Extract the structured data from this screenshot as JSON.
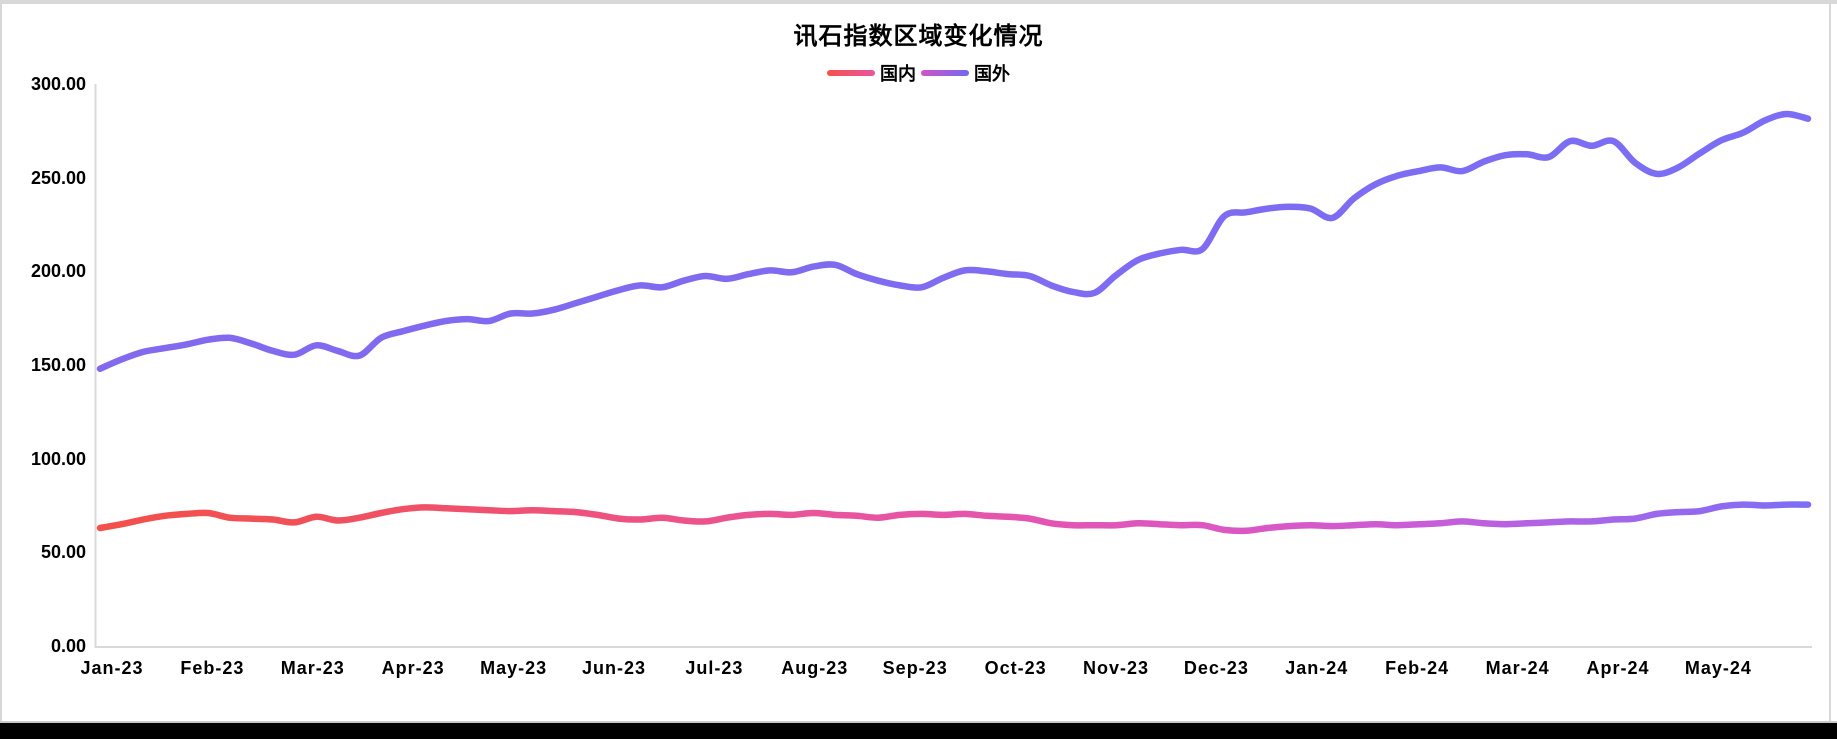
{
  "page": {
    "background": "#ffffff",
    "frame_edge_color": "#d8d8d8",
    "bottom_line_color": "#c9c9c9",
    "bottom_bar_color": "#000000"
  },
  "chart": {
    "title": "讯石指数区域变化情况",
    "legend_items": [
      {
        "label": "国内",
        "swatch_start": "#f4524b",
        "swatch_end": "#e9559e"
      },
      {
        "label": "国外",
        "swatch_start": "#d054c4",
        "swatch_end": "#7468f2"
      }
    ],
    "axis_line_color": "#d9d9d9",
    "text_color": "#000000"
  },
  "chart_data": {
    "type": "line",
    "title": "讯石指数区域变化情况",
    "legend_position": "top",
    "grid": false,
    "ylim": [
      0,
      300
    ],
    "y_ticks": [
      {
        "v": 0,
        "label": "0.00"
      },
      {
        "v": 50,
        "label": "50.00"
      },
      {
        "v": 100,
        "label": "100.00"
      },
      {
        "v": 150,
        "label": "150.00"
      },
      {
        "v": 200,
        "label": "200.00"
      },
      {
        "v": 250,
        "label": "250.00"
      },
      {
        "v": 300,
        "label": "300.00"
      }
    ],
    "x_labels": [
      "Jan-23",
      "Feb-23",
      "Mar-23",
      "Apr-23",
      "May-23",
      "Jun-23",
      "Jul-23",
      "Aug-23",
      "Sep-23",
      "Oct-23",
      "Nov-23",
      "Dec-23",
      "Jan-24",
      "Feb-24",
      "Mar-24",
      "Apr-24",
      "May-24"
    ],
    "x_unit": "weekly points from Jan-23 to end of May-24",
    "series": [
      {
        "name": "国内",
        "line_width": 6.5,
        "gradient": [
          [
            "0",
            "#f3504a"
          ],
          [
            "0.12",
            "#f15058"
          ],
          [
            "0.28",
            "#ee527b"
          ],
          [
            "0.42",
            "#e9549b"
          ],
          [
            "0.55",
            "#e355b2"
          ],
          [
            "0.68",
            "#da58c6"
          ],
          [
            "0.78",
            "#c75dd9"
          ],
          [
            "0.88",
            "#a566ea"
          ],
          [
            "1",
            "#7b6ef6"
          ]
        ],
        "values": [
          63,
          65,
          67.5,
          69.5,
          70.5,
          71,
          68.5,
          68,
          67.5,
          66,
          69,
          67,
          68.5,
          71,
          73,
          74,
          73.5,
          73,
          72.5,
          72,
          72.5,
          72,
          71.5,
          70,
          68,
          67.5,
          68.5,
          67,
          66.5,
          68.5,
          70,
          70.5,
          70,
          71,
          70,
          69.5,
          68.5,
          70,
          70.5,
          70,
          70.5,
          69.5,
          69,
          68,
          65.5,
          64.5,
          64.5,
          64.5,
          65.5,
          65,
          64.5,
          64.5,
          62,
          61.5,
          63,
          64,
          64.5,
          64,
          64.5,
          65,
          64.5,
          65,
          65.5,
          66.5,
          65.5,
          65,
          65.5,
          66,
          66.5,
          66.5,
          67.5,
          68,
          70.5,
          71.5,
          72,
          74.5,
          75.5,
          75,
          75.5,
          75.5
        ]
      },
      {
        "name": "国外",
        "line_width": 6.5,
        "gradient": [
          [
            "0",
            "#8269ee"
          ],
          [
            "1",
            "#7b6ef4"
          ]
        ],
        "values": [
          148,
          153,
          157,
          159,
          161,
          163.5,
          164.5,
          161.5,
          157.5,
          155.5,
          160.5,
          157.5,
          155,
          164.5,
          168,
          171,
          173.5,
          174.5,
          173.5,
          177.5,
          177.5,
          179.5,
          183,
          186.5,
          190,
          192.5,
          191.5,
          195,
          197.5,
          196,
          198.5,
          200.5,
          199.5,
          202.5,
          203.5,
          198.5,
          195,
          192.5,
          191.5,
          196.5,
          200.5,
          200,
          198.5,
          197.5,
          192.5,
          189,
          188.5,
          198,
          206,
          209.5,
          211.5,
          212,
          229.5,
          231.5,
          233.5,
          234.5,
          233.5,
          228.5,
          239,
          246.5,
          251,
          253.5,
          255.5,
          253.5,
          258.5,
          262,
          262.5,
          261,
          269.5,
          267,
          269.5,
          258,
          252,
          255.5,
          263,
          270,
          274,
          280.5,
          284,
          281.5
        ]
      }
    ]
  }
}
